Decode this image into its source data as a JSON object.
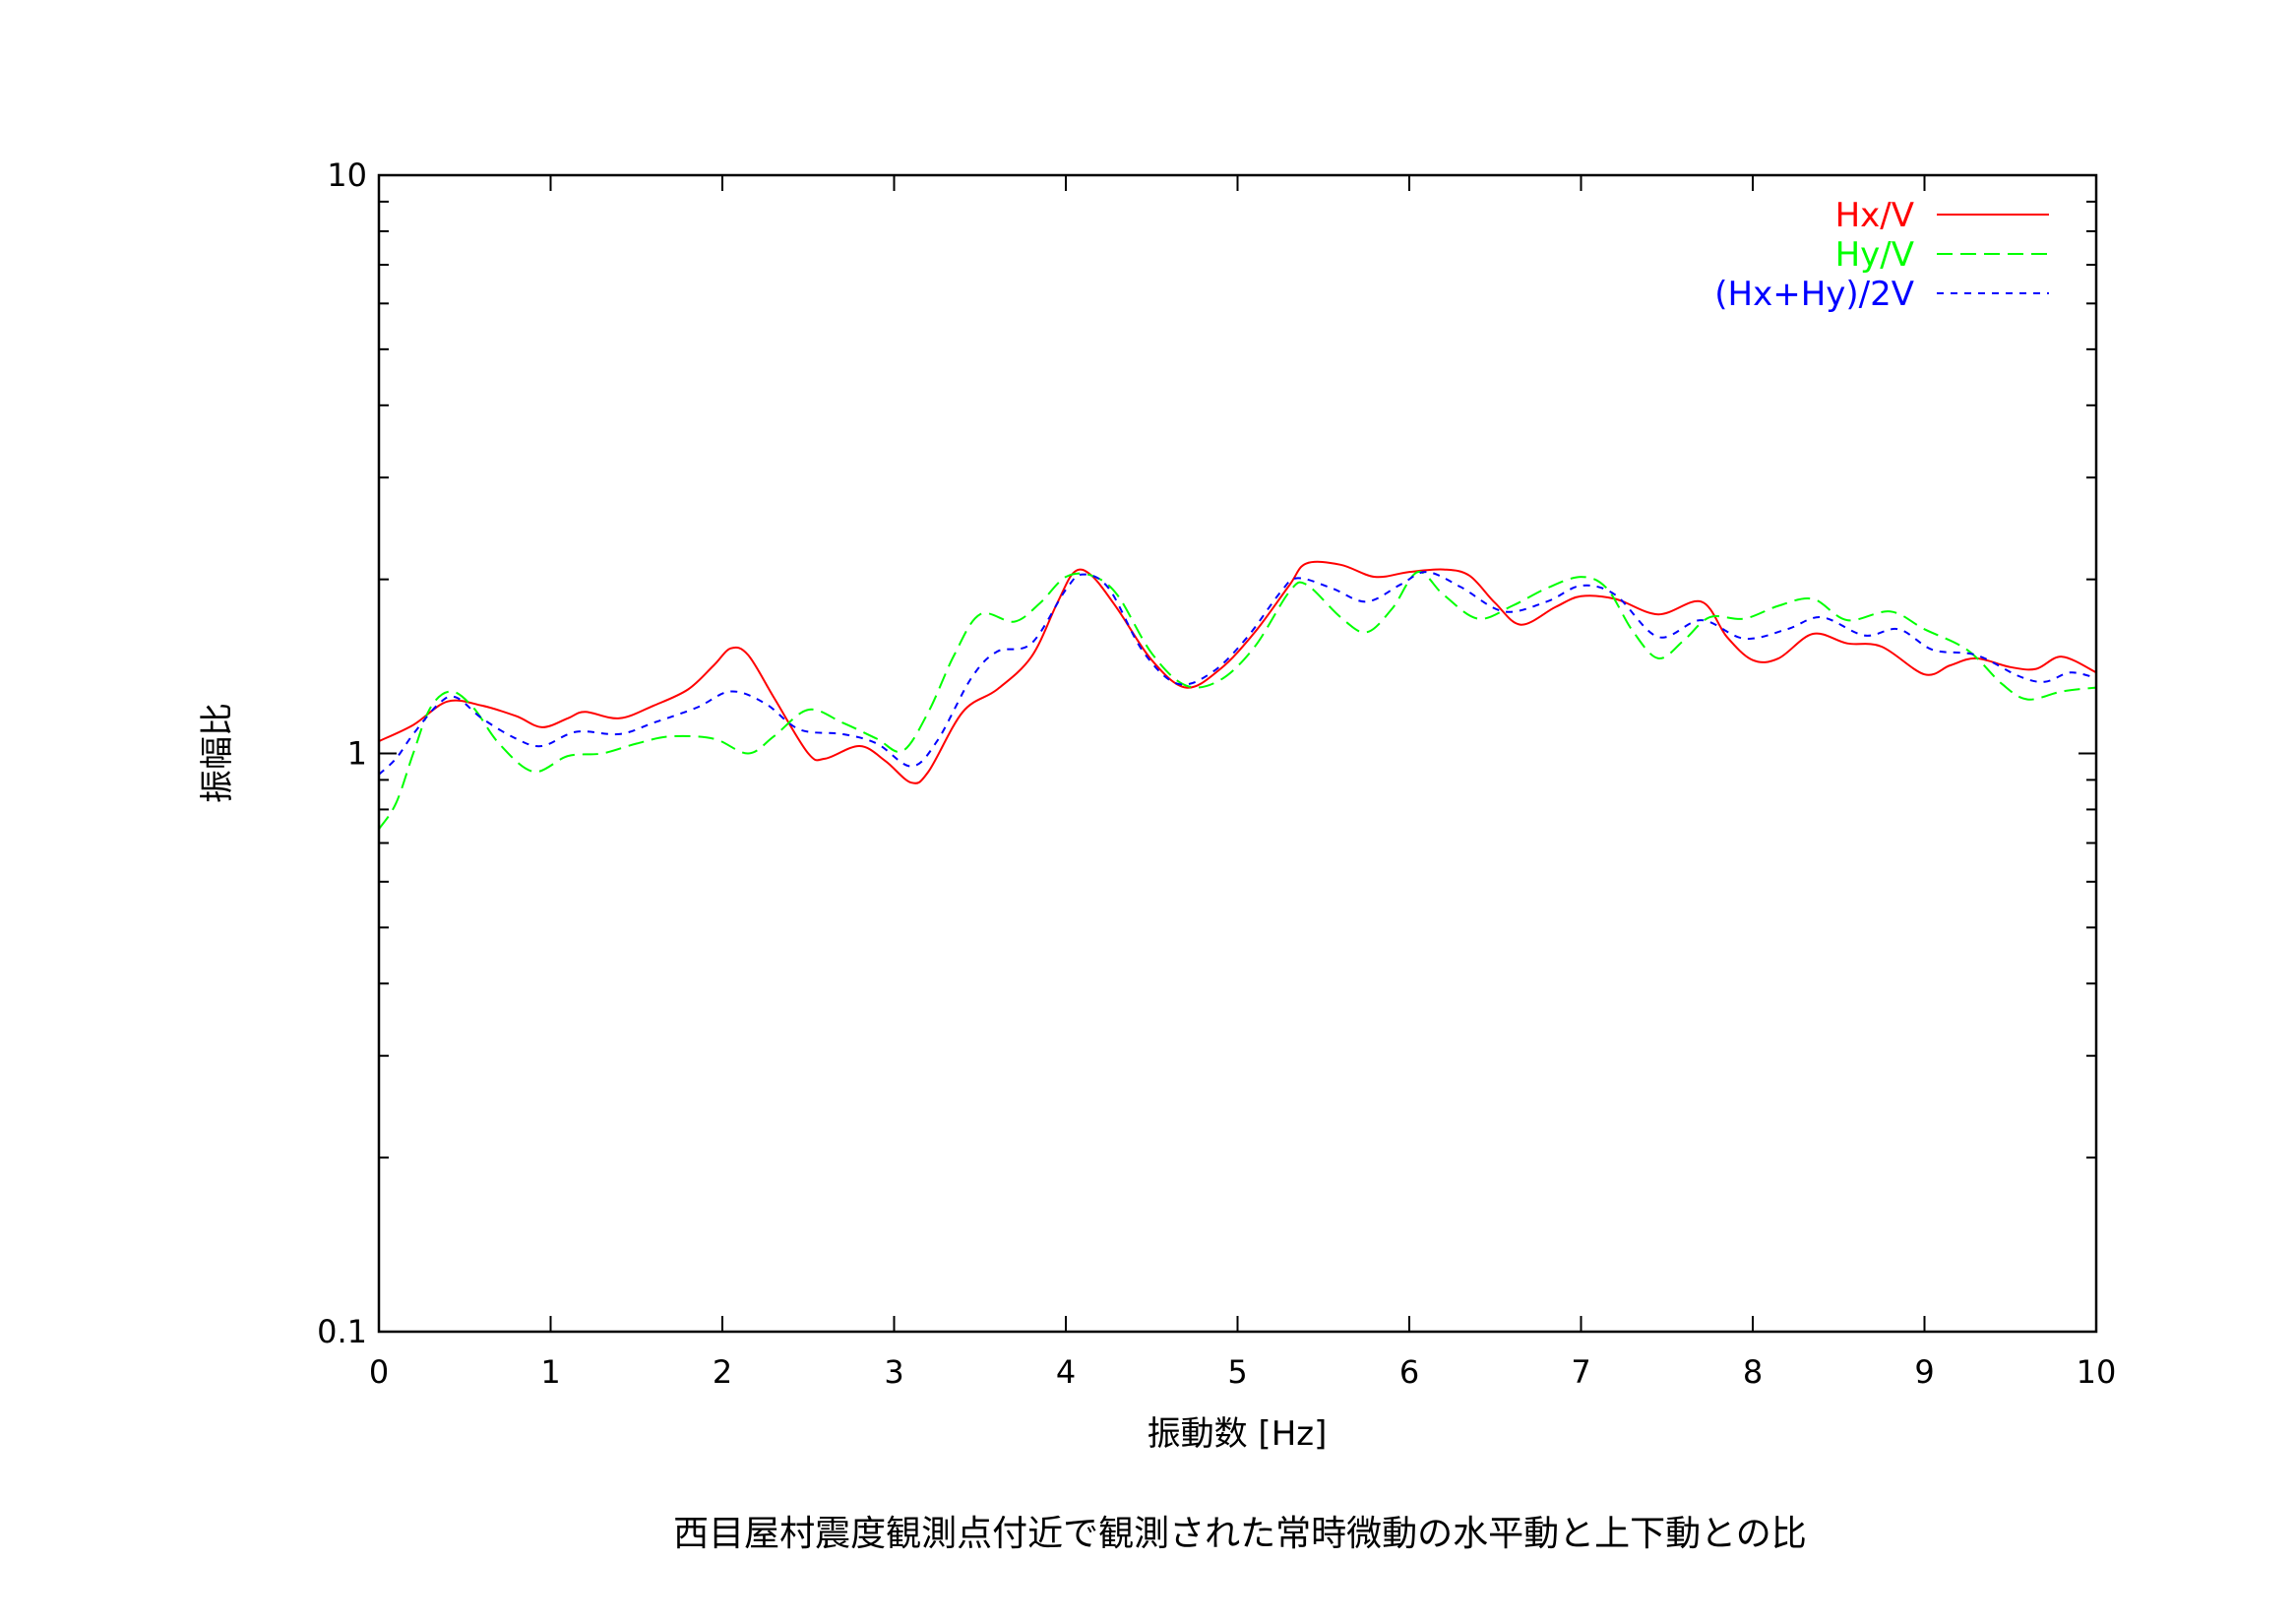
{
  "chart_data": {
    "type": "line",
    "title": "",
    "caption": "西目屋村震度観測点付近で観測された常時微動の水平動と上下動との比",
    "xlabel": "振動数 [Hz]",
    "ylabel": "振幅比",
    "xlim": [
      0,
      10
    ],
    "ylim": [
      0.1,
      10
    ],
    "yscale": "log",
    "x_ticks": [
      "0",
      "1",
      "2",
      "3",
      "4",
      "5",
      "6",
      "7",
      "8",
      "9",
      "10"
    ],
    "y_ticks": [
      "0.1",
      "1",
      "10"
    ],
    "grid": false,
    "legend": "top-right",
    "series": [
      {
        "name": "Hx/V",
        "color": "#ff0000",
        "style": "solid",
        "points": [
          [
            0.0,
            1.05
          ],
          [
            0.2,
            1.12
          ],
          [
            0.4,
            1.23
          ],
          [
            0.6,
            1.21
          ],
          [
            0.8,
            1.16
          ],
          [
            0.95,
            1.11
          ],
          [
            1.1,
            1.15
          ],
          [
            1.2,
            1.18
          ],
          [
            1.4,
            1.15
          ],
          [
            1.6,
            1.21
          ],
          [
            1.8,
            1.29
          ],
          [
            1.95,
            1.42
          ],
          [
            2.05,
            1.52
          ],
          [
            2.15,
            1.48
          ],
          [
            2.3,
            1.25
          ],
          [
            2.5,
            1.0
          ],
          [
            2.6,
            0.98
          ],
          [
            2.8,
            1.03
          ],
          [
            2.95,
            0.97
          ],
          [
            3.1,
            0.89
          ],
          [
            3.2,
            0.93
          ],
          [
            3.4,
            1.18
          ],
          [
            3.6,
            1.29
          ],
          [
            3.8,
            1.47
          ],
          [
            3.95,
            1.82
          ],
          [
            4.05,
            2.06
          ],
          [
            4.15,
            2.03
          ],
          [
            4.3,
            1.78
          ],
          [
            4.5,
            1.45
          ],
          [
            4.7,
            1.3
          ],
          [
            4.9,
            1.4
          ],
          [
            5.1,
            1.62
          ],
          [
            5.3,
            1.95
          ],
          [
            5.4,
            2.13
          ],
          [
            5.6,
            2.12
          ],
          [
            5.8,
            2.02
          ],
          [
            6.0,
            2.06
          ],
          [
            6.2,
            2.08
          ],
          [
            6.35,
            2.03
          ],
          [
            6.5,
            1.82
          ],
          [
            6.65,
            1.67
          ],
          [
            6.85,
            1.79
          ],
          [
            7.0,
            1.87
          ],
          [
            7.2,
            1.85
          ],
          [
            7.45,
            1.74
          ],
          [
            7.7,
            1.83
          ],
          [
            7.85,
            1.59
          ],
          [
            8.0,
            1.45
          ],
          [
            8.15,
            1.46
          ],
          [
            8.35,
            1.61
          ],
          [
            8.55,
            1.55
          ],
          [
            8.75,
            1.53
          ],
          [
            9.0,
            1.37
          ],
          [
            9.15,
            1.42
          ],
          [
            9.3,
            1.46
          ],
          [
            9.5,
            1.41
          ],
          [
            9.65,
            1.4
          ],
          [
            9.8,
            1.47
          ],
          [
            10.0,
            1.38
          ]
        ]
      },
      {
        "name": "Hy/V",
        "color": "#00ff00",
        "style": "dashed",
        "points": [
          [
            0.0,
            0.74
          ],
          [
            0.1,
            0.82
          ],
          [
            0.2,
            1.0
          ],
          [
            0.3,
            1.2
          ],
          [
            0.42,
            1.28
          ],
          [
            0.55,
            1.2
          ],
          [
            0.7,
            1.04
          ],
          [
            0.9,
            0.93
          ],
          [
            1.1,
            0.99
          ],
          [
            1.3,
            1.0
          ],
          [
            1.5,
            1.04
          ],
          [
            1.7,
            1.07
          ],
          [
            1.95,
            1.06
          ],
          [
            2.15,
            1.0
          ],
          [
            2.3,
            1.07
          ],
          [
            2.5,
            1.19
          ],
          [
            2.7,
            1.13
          ],
          [
            2.9,
            1.06
          ],
          [
            3.05,
            1.01
          ],
          [
            3.2,
            1.18
          ],
          [
            3.35,
            1.48
          ],
          [
            3.5,
            1.74
          ],
          [
            3.7,
            1.69
          ],
          [
            3.85,
            1.82
          ],
          [
            4.0,
            2.02
          ],
          [
            4.15,
            2.03
          ],
          [
            4.3,
            1.88
          ],
          [
            4.5,
            1.49
          ],
          [
            4.7,
            1.31
          ],
          [
            4.9,
            1.34
          ],
          [
            5.1,
            1.53
          ],
          [
            5.3,
            1.9
          ],
          [
            5.4,
            1.96
          ],
          [
            5.6,
            1.72
          ],
          [
            5.75,
            1.62
          ],
          [
            5.9,
            1.78
          ],
          [
            6.05,
            2.06
          ],
          [
            6.2,
            1.88
          ],
          [
            6.4,
            1.71
          ],
          [
            6.6,
            1.8
          ],
          [
            6.8,
            1.93
          ],
          [
            7.0,
            2.02
          ],
          [
            7.15,
            1.93
          ],
          [
            7.3,
            1.63
          ],
          [
            7.45,
            1.46
          ],
          [
            7.6,
            1.57
          ],
          [
            7.75,
            1.72
          ],
          [
            7.95,
            1.71
          ],
          [
            8.15,
            1.8
          ],
          [
            8.35,
            1.85
          ],
          [
            8.55,
            1.7
          ],
          [
            8.8,
            1.76
          ],
          [
            9.0,
            1.64
          ],
          [
            9.25,
            1.51
          ],
          [
            9.45,
            1.32
          ],
          [
            9.6,
            1.24
          ],
          [
            9.8,
            1.28
          ],
          [
            10.0,
            1.3
          ]
        ]
      },
      {
        "name": "(Hx+Hy)/2V",
        "color": "#0000ff",
        "style": "dotted",
        "points": [
          [
            0.0,
            0.92
          ],
          [
            0.1,
            0.98
          ],
          [
            0.2,
            1.08
          ],
          [
            0.35,
            1.22
          ],
          [
            0.45,
            1.25
          ],
          [
            0.6,
            1.15
          ],
          [
            0.8,
            1.06
          ],
          [
            0.95,
            1.03
          ],
          [
            1.15,
            1.09
          ],
          [
            1.4,
            1.08
          ],
          [
            1.6,
            1.13
          ],
          [
            1.85,
            1.2
          ],
          [
            2.05,
            1.28
          ],
          [
            2.25,
            1.22
          ],
          [
            2.45,
            1.1
          ],
          [
            2.7,
            1.08
          ],
          [
            2.9,
            1.04
          ],
          [
            3.1,
            0.95
          ],
          [
            3.25,
            1.05
          ],
          [
            3.45,
            1.35
          ],
          [
            3.6,
            1.5
          ],
          [
            3.8,
            1.55
          ],
          [
            4.0,
            1.92
          ],
          [
            4.1,
            2.04
          ],
          [
            4.25,
            1.93
          ],
          [
            4.45,
            1.5
          ],
          [
            4.65,
            1.32
          ],
          [
            4.85,
            1.38
          ],
          [
            5.05,
            1.58
          ],
          [
            5.25,
            1.9
          ],
          [
            5.35,
            2.01
          ],
          [
            5.55,
            1.93
          ],
          [
            5.75,
            1.83
          ],
          [
            5.95,
            1.96
          ],
          [
            6.1,
            2.06
          ],
          [
            6.3,
            1.94
          ],
          [
            6.55,
            1.76
          ],
          [
            6.8,
            1.83
          ],
          [
            7.0,
            1.95
          ],
          [
            7.2,
            1.88
          ],
          [
            7.45,
            1.59
          ],
          [
            7.7,
            1.7
          ],
          [
            7.95,
            1.58
          ],
          [
            8.2,
            1.64
          ],
          [
            8.4,
            1.72
          ],
          [
            8.65,
            1.6
          ],
          [
            8.85,
            1.64
          ],
          [
            9.05,
            1.51
          ],
          [
            9.3,
            1.48
          ],
          [
            9.55,
            1.36
          ],
          [
            9.7,
            1.33
          ],
          [
            9.85,
            1.38
          ],
          [
            10.0,
            1.35
          ]
        ]
      }
    ]
  }
}
